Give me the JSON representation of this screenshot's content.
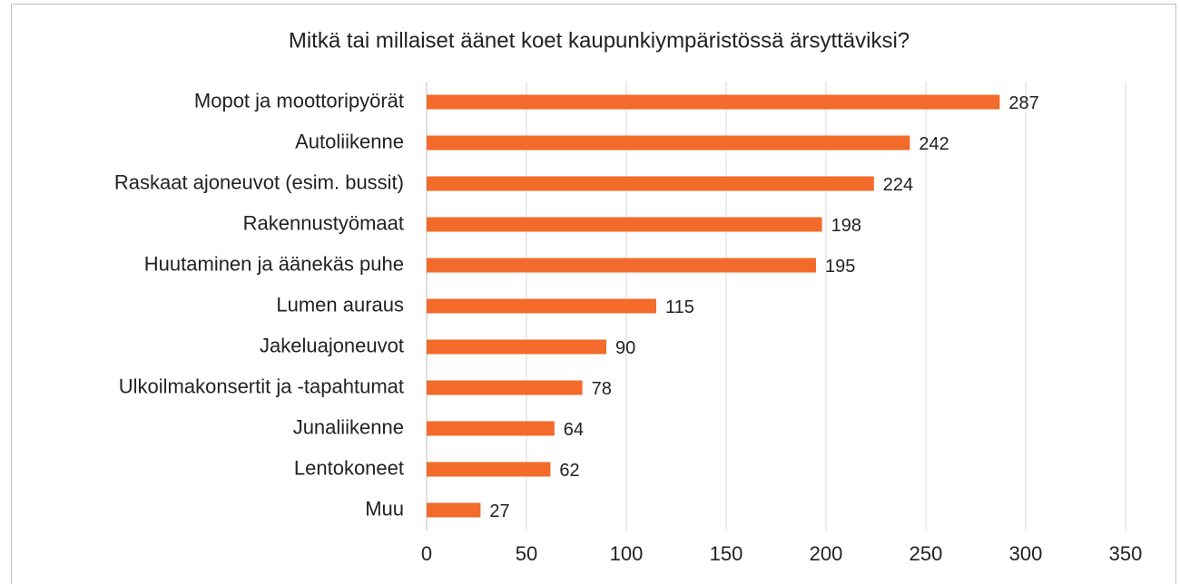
{
  "chart_data": {
    "type": "bar",
    "orientation": "horizontal",
    "title": "Mitkä tai millaiset äänet koet kaupunkiympäristössä ärsyttäviksi?",
    "categories": [
      "Mopot ja moottoripyörät",
      "Autoliikenne",
      "Raskaat ajoneuvot (esim. bussit)",
      "Rakennustyömaat",
      "Huutaminen ja äänekäs puhe",
      "Lumen auraus",
      "Jakeluajoneuvot",
      "Ulkoilmakonsertit ja -tapahtumat",
      "Junaliikenne",
      "Lentokoneet",
      "Muu"
    ],
    "values": [
      287,
      242,
      224,
      198,
      195,
      115,
      90,
      78,
      64,
      62,
      27
    ],
    "color": "#f26b2a",
    "xlim": [
      0,
      350
    ],
    "xticks": [
      0,
      50,
      100,
      150,
      200,
      250,
      300,
      350
    ],
    "grid": true
  }
}
